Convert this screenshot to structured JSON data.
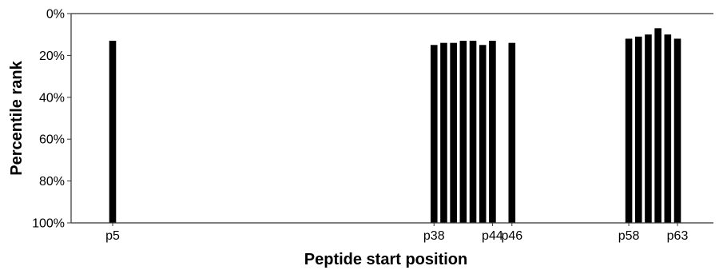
{
  "chart_data": {
    "type": "bar",
    "title": "",
    "xlabel": "Peptide start position",
    "ylabel": "Percentile rank",
    "yaxis": {
      "inverted": true,
      "ylim": [
        0,
        100
      ],
      "ticks": [
        0,
        20,
        40,
        60,
        80,
        100
      ],
      "tick_labels": [
        "0%",
        "20%",
        "40%",
        "60%",
        "80%",
        "100%"
      ]
    },
    "xaxis": {
      "xlim": [
        1,
        68
      ],
      "labeled_ticks": [
        {
          "x": 5,
          "label": "p5"
        },
        {
          "x": 38,
          "label": "p38"
        },
        {
          "x": 44,
          "label": "p44"
        },
        {
          "x": 46,
          "label": "p46"
        },
        {
          "x": 58,
          "label": "p58"
        },
        {
          "x": 63,
          "label": "p63"
        }
      ]
    },
    "grid": false,
    "bar_color": "#000000",
    "x": [
      5,
      38,
      39,
      40,
      41,
      42,
      43,
      44,
      46,
      58,
      59,
      60,
      61,
      62,
      63
    ],
    "values": [
      13,
      15,
      14,
      14,
      13,
      13,
      15,
      13,
      14,
      12,
      11,
      10,
      7,
      10,
      12
    ]
  }
}
